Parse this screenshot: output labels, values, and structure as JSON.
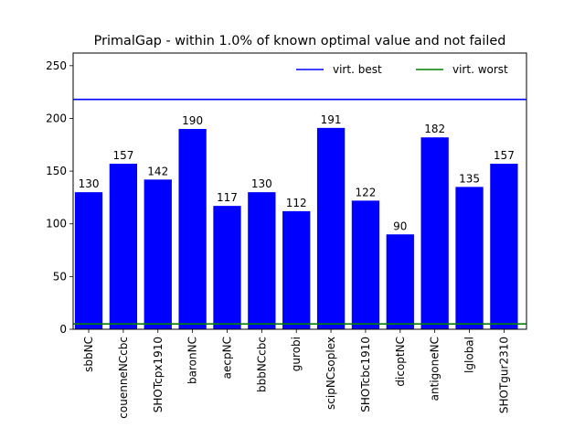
{
  "chart_data": {
    "type": "bar",
    "title": "PrimalGap - within 1.0% of known optimal value and not failed",
    "xlabel": "",
    "ylabel": "",
    "categories": [
      "sbbNC",
      "couenneNCcbc",
      "SHOTcpx1910",
      "baronNC",
      "aecpNC",
      "bbbNCcbc",
      "gurobi",
      "scipNCsoplex",
      "SHOTcbc1910",
      "dicoptNC",
      "antigoneNC",
      "lglobal",
      "SHOTgur2310"
    ],
    "values": [
      130,
      157,
      142,
      190,
      117,
      130,
      112,
      191,
      122,
      90,
      182,
      135,
      157
    ],
    "data_labels": [
      "130",
      "157",
      "142",
      "190",
      "117",
      "130",
      "112",
      "191",
      "122",
      "90",
      "182",
      "135",
      "157"
    ],
    "ylim": [
      0,
      262
    ],
    "yticks": [
      0,
      50,
      100,
      150,
      200,
      250
    ],
    "ytick_labels": [
      "0",
      "50",
      "100",
      "150",
      "200",
      "250"
    ],
    "bar_color": "#0000ff",
    "reference_lines": [
      {
        "name": "virt. best",
        "value": 218,
        "color": "#0000ff"
      },
      {
        "name": "virt. worst",
        "value": 5,
        "color": "#008000"
      }
    ],
    "legend": {
      "placement": "top-right",
      "entries": [
        "virt. best",
        "virt. worst"
      ]
    },
    "grid": false
  }
}
